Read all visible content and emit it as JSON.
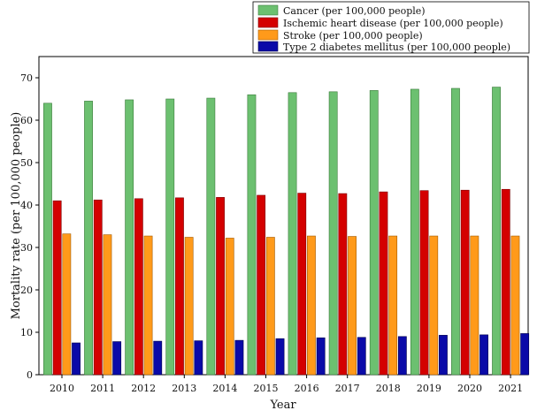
{
  "chart_data": {
    "type": "bar",
    "title": "",
    "xlabel": "Year",
    "ylabel": "Mortality rate (per 100,000 people)",
    "ylim": [
      0,
      75
    ],
    "yticks": [
      0,
      10,
      20,
      30,
      40,
      50,
      60,
      70
    ],
    "grid": false,
    "legend_position": "top-right",
    "categories": [
      "2010",
      "2011",
      "2012",
      "2013",
      "2014",
      "2015",
      "2016",
      "2017",
      "2018",
      "2019",
      "2020",
      "2021"
    ],
    "series": [
      {
        "name": "Cancer (per 100,000 people)",
        "color": "#6cc070",
        "values": [
          64.0,
          64.5,
          64.8,
          65.0,
          65.2,
          66.0,
          66.5,
          66.7,
          67.0,
          67.3,
          67.5,
          67.8
        ]
      },
      {
        "name": "Ischemic heart disease (per 100,000 people)",
        "color": "#d40000",
        "values": [
          41.0,
          41.2,
          41.5,
          41.7,
          41.8,
          42.3,
          42.8,
          42.7,
          43.1,
          43.4,
          43.5,
          43.7
        ]
      },
      {
        "name": "Stroke (per 100,000 people)",
        "color": "#ff9a1a",
        "values": [
          33.2,
          33.0,
          32.7,
          32.4,
          32.2,
          32.4,
          32.7,
          32.6,
          32.7,
          32.7,
          32.7,
          32.7
        ]
      },
      {
        "name": "Type 2 diabetes mellitus (per 100,000 people)",
        "color": "#0a0aa8",
        "values": [
          7.5,
          7.8,
          7.9,
          8.0,
          8.1,
          8.5,
          8.7,
          8.8,
          9.0,
          9.3,
          9.4,
          9.7
        ]
      }
    ]
  }
}
